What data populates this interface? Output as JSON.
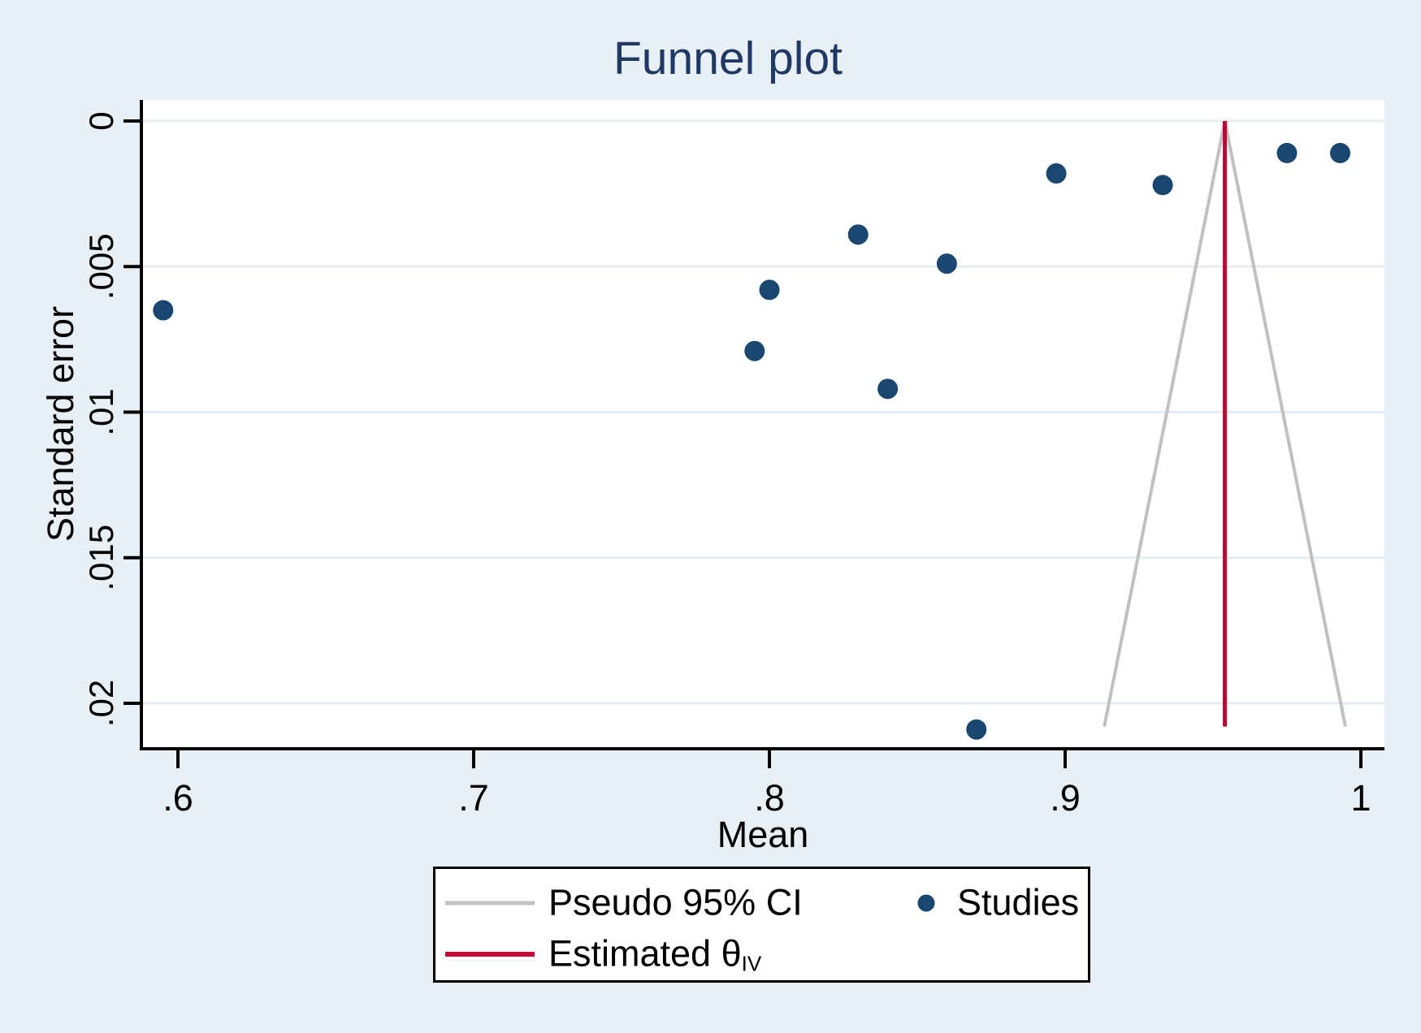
{
  "title": "Funnel plot",
  "axes": {
    "x_label": "Mean",
    "y_label": "Standard error",
    "x_tick_labels": [
      ".6",
      ".7",
      ".8",
      ".9",
      "1"
    ],
    "y_tick_labels": [
      "0",
      ".005",
      ".01",
      ".015",
      ".02"
    ]
  },
  "legend": {
    "pseudo_ci_label": "Pseudo 95% CI",
    "studies_label": "Studies",
    "estimate_label": "Estimated θ",
    "estimate_subscript": "IV"
  },
  "colors": {
    "background": "#e9f0f5",
    "plot_background": "#ffffff",
    "gridline": "#e3edf3",
    "axis": "#000000",
    "title_text": "#1f3864",
    "studies_marker": "#1a476f",
    "estimate_line": "#c10534",
    "pseudo_ci_line": "#c0c0c0",
    "legend_background": "#ffffff"
  },
  "chart_data": {
    "type": "scatter",
    "title": "Funnel plot",
    "xlabel": "Mean",
    "ylabel": "Standard error",
    "x_ticks": [
      0.6,
      0.7,
      0.8,
      0.9,
      1
    ],
    "y_ticks": [
      0,
      0.005,
      0.01,
      0.015,
      0.02
    ],
    "xlim": [
      0.588,
      1.008
    ],
    "ylim": [
      0.0216,
      0
    ],
    "y_axis_reversed": true,
    "grid": "horizontal",
    "legend_position": "bottom",
    "series": [
      {
        "name": "Studies",
        "type": "scatter",
        "points": [
          {
            "mean": 0.595,
            "se": 0.0065
          },
          {
            "mean": 0.795,
            "se": 0.0079
          },
          {
            "mean": 0.8,
            "se": 0.0058
          },
          {
            "mean": 0.83,
            "se": 0.0039
          },
          {
            "mean": 0.84,
            "se": 0.0092
          },
          {
            "mean": 0.86,
            "se": 0.0049
          },
          {
            "mean": 0.897,
            "se": 0.0018
          },
          {
            "mean": 0.933,
            "se": 0.0022
          },
          {
            "mean": 0.975,
            "se": 0.0011
          },
          {
            "mean": 0.993,
            "se": 0.0011
          },
          {
            "mean": 0.87,
            "se": 0.0209
          }
        ]
      }
    ],
    "estimated_theta_iv": 0.954,
    "pseudo_95_ci": {
      "apex_mean": 0.954,
      "apex_se": 0,
      "half_width_multiplier": 1.96,
      "se_extent": 0.0208
    }
  }
}
